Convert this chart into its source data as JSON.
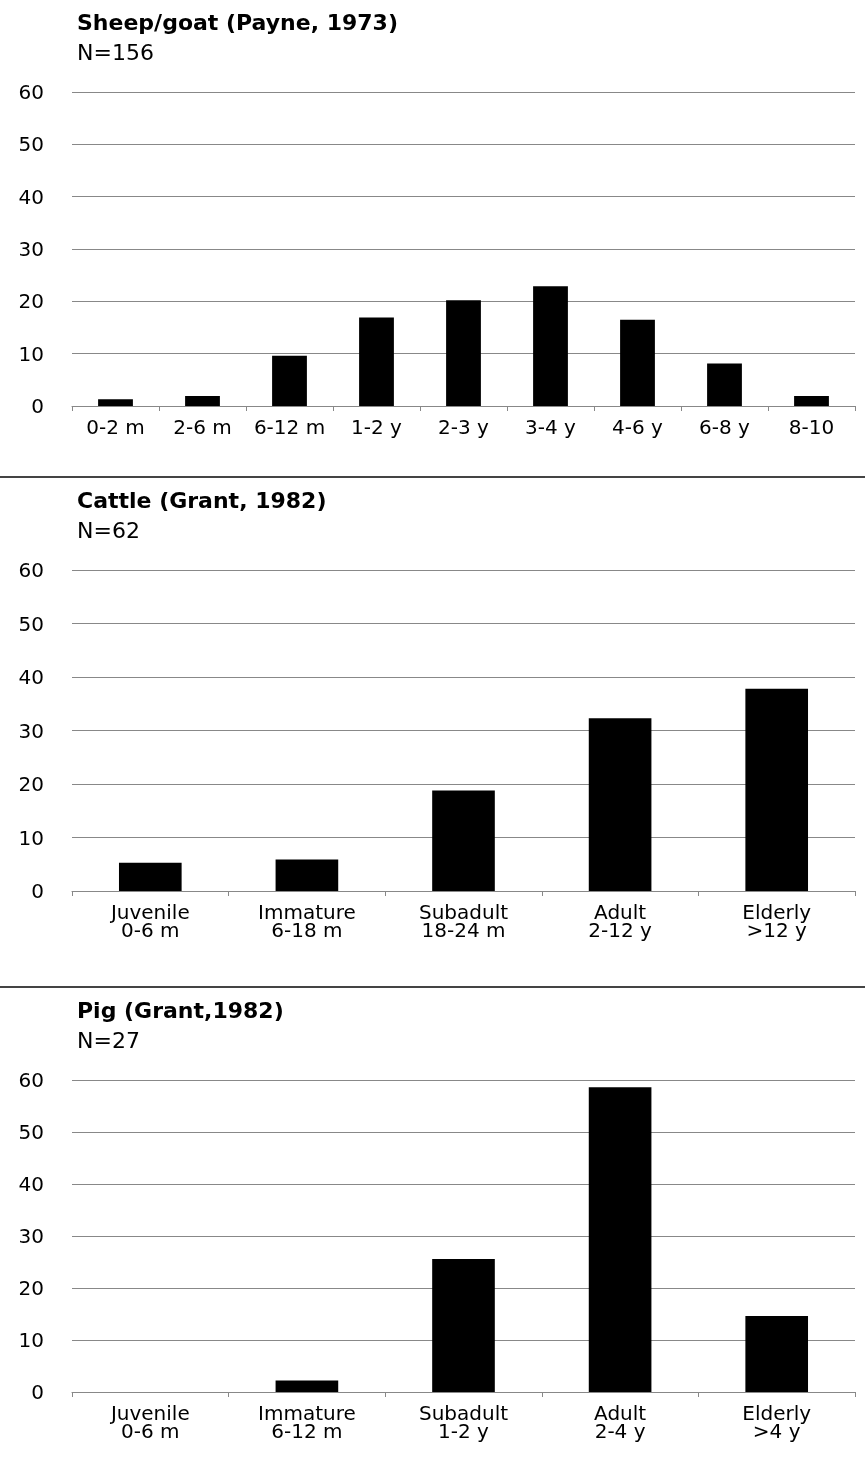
{
  "chart_data": [
    {
      "type": "bar",
      "title": "Sheep/goat (Payne, 1973)",
      "subtitle": "N=156",
      "categories": [
        "0-2 m",
        "2-6 m",
        "6-12 m",
        "1-2 y",
        "2-3 y",
        "3-4 y",
        "4-6 y",
        "6-8 y",
        "8-10"
      ],
      "values": [
        1.3,
        1.9,
        9.6,
        16.9,
        20.2,
        22.9,
        16.5,
        8.1,
        1.9
      ],
      "color": "#000000",
      "ylim": [
        0,
        60
      ],
      "yticks": [
        0,
        10,
        20,
        30,
        40,
        50,
        60
      ],
      "grid": "y"
    },
    {
      "type": "bar",
      "title": "Cattle (Grant, 1982)",
      "subtitle": "N=62",
      "categories": [
        "Juvenile\n0-6 m",
        "Immature\n6-18 m",
        "Subadult\n18-24 m",
        "Adult\n2-12 y",
        "Elderly\n>12 y"
      ],
      "values": [
        5.3,
        5.9,
        18.8,
        32.3,
        37.8
      ],
      "color": "#000000",
      "ylim": [
        0,
        60
      ],
      "yticks": [
        0,
        10,
        20,
        30,
        40,
        50,
        60
      ],
      "grid": "y"
    },
    {
      "type": "bar",
      "title": "Pig (Grant,1982)",
      "subtitle": "N=27",
      "categories": [
        "Juvenile\n0-6 m",
        "Immature\n6-12 m",
        "Subadult\n1-2 y",
        "Adult\n2-4 y",
        "Elderly\n>4 y"
      ],
      "values": [
        0,
        2.2,
        25.6,
        58.6,
        14.6
      ],
      "color": "#000000",
      "ylim": [
        0,
        60
      ],
      "yticks": [
        0,
        10,
        20,
        30,
        40,
        50,
        60
      ],
      "grid": "y"
    }
  ]
}
